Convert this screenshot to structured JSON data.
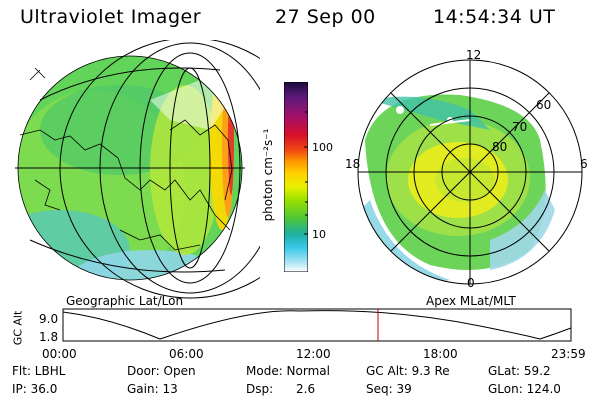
{
  "header": {
    "instrument": "Ultraviolet Imager",
    "date": "27 Sep 00",
    "time": "14:54:34 UT"
  },
  "geo_panel": {
    "label": "Geographic Lat/Lon"
  },
  "apex_panel": {
    "label": "Apex MLat/MLT",
    "mlt_labels": [
      "12",
      "18",
      "6",
      "0"
    ],
    "lat_labels": [
      "60",
      "70",
      "80"
    ]
  },
  "colorbar": {
    "unit_label": "photon cm⁻²s⁻¹",
    "tick_labels": [
      "100",
      "10"
    ],
    "scale": "log",
    "colors": [
      "#1a0a3c",
      "#5c1a7a",
      "#a0106a",
      "#d8102a",
      "#f04a10",
      "#ff9a00",
      "#ffd000",
      "#e8f000",
      "#9ee000",
      "#4cc43a",
      "#1fb0a0",
      "#38c8e8",
      "#9ee0f0",
      "#ffffff"
    ]
  },
  "altitude_plot": {
    "ylabel": "GC Alt",
    "y_ticks": [
      "9.0",
      "1.8"
    ],
    "x_ticks": [
      "00:00",
      "06:00",
      "12:00",
      "18:00",
      "23:59"
    ],
    "marker_time": "14:54",
    "marker_color": "#cc0000"
  },
  "status": {
    "filter": "Flt: LBHL",
    "door": "Door: Open",
    "mode": "Mode: Normal",
    "gc_alt": "GC Alt: 9.3 Re",
    "glat": "GLat: 59.2",
    "ip": "IP: 36.0",
    "gain": "Gain: 13",
    "dsp_label": "Dsp:",
    "dsp_value": "2.6",
    "seq": "Seq: 39",
    "glon": "GLon: 124.0"
  }
}
